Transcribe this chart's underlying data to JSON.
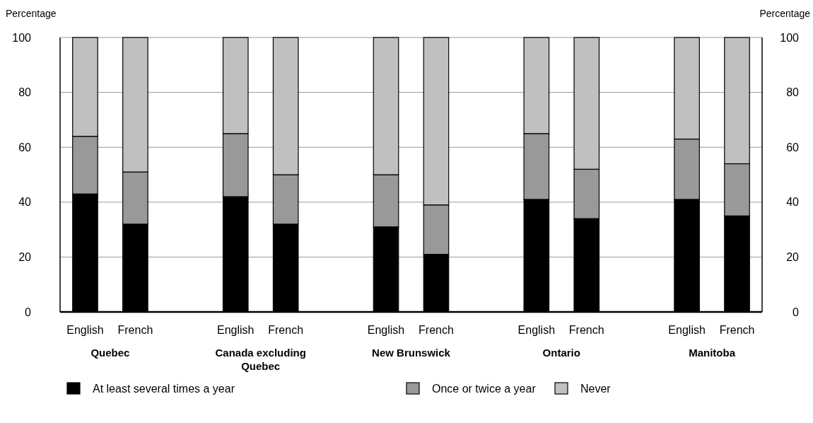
{
  "chart_data": {
    "type": "bar",
    "stacked": true,
    "ylabel": "Percentage",
    "y2label": "Percentage",
    "categories": [
      "English",
      "French",
      null,
      "English",
      "French",
      null,
      "English",
      "French",
      null,
      "English",
      "French",
      null,
      "English",
      "French"
    ],
    "series": [
      {
        "name": "At least several times a year",
        "color": "#000000",
        "values": [
          43,
          32,
          null,
          42,
          32,
          null,
          31,
          21,
          null,
          41,
          34,
          null,
          41,
          35
        ]
      },
      {
        "name": "Once or twice a year",
        "color": "#999999",
        "values": [
          21,
          19,
          null,
          23,
          18,
          null,
          19,
          18,
          null,
          24,
          18,
          null,
          22,
          19
        ]
      },
      {
        "name": "Never",
        "color": "#c0c0c0",
        "values": [
          36,
          49,
          null,
          35,
          50,
          null,
          50,
          61,
          null,
          35,
          48,
          null,
          37,
          46
        ]
      }
    ],
    "annotations": [
      "Quebec",
      "Canada excluding Quebec",
      "New Brunswick",
      "Ontario",
      "Manitoba"
    ],
    "ylim": [
      0,
      100
    ],
    "yticks": [
      0,
      20,
      40,
      60,
      80,
      100
    ],
    "y2lim": [
      0,
      100
    ],
    "y2ticks": [
      0,
      20,
      40,
      60,
      80,
      100
    ],
    "grid": "y",
    "legend": "bottom"
  }
}
